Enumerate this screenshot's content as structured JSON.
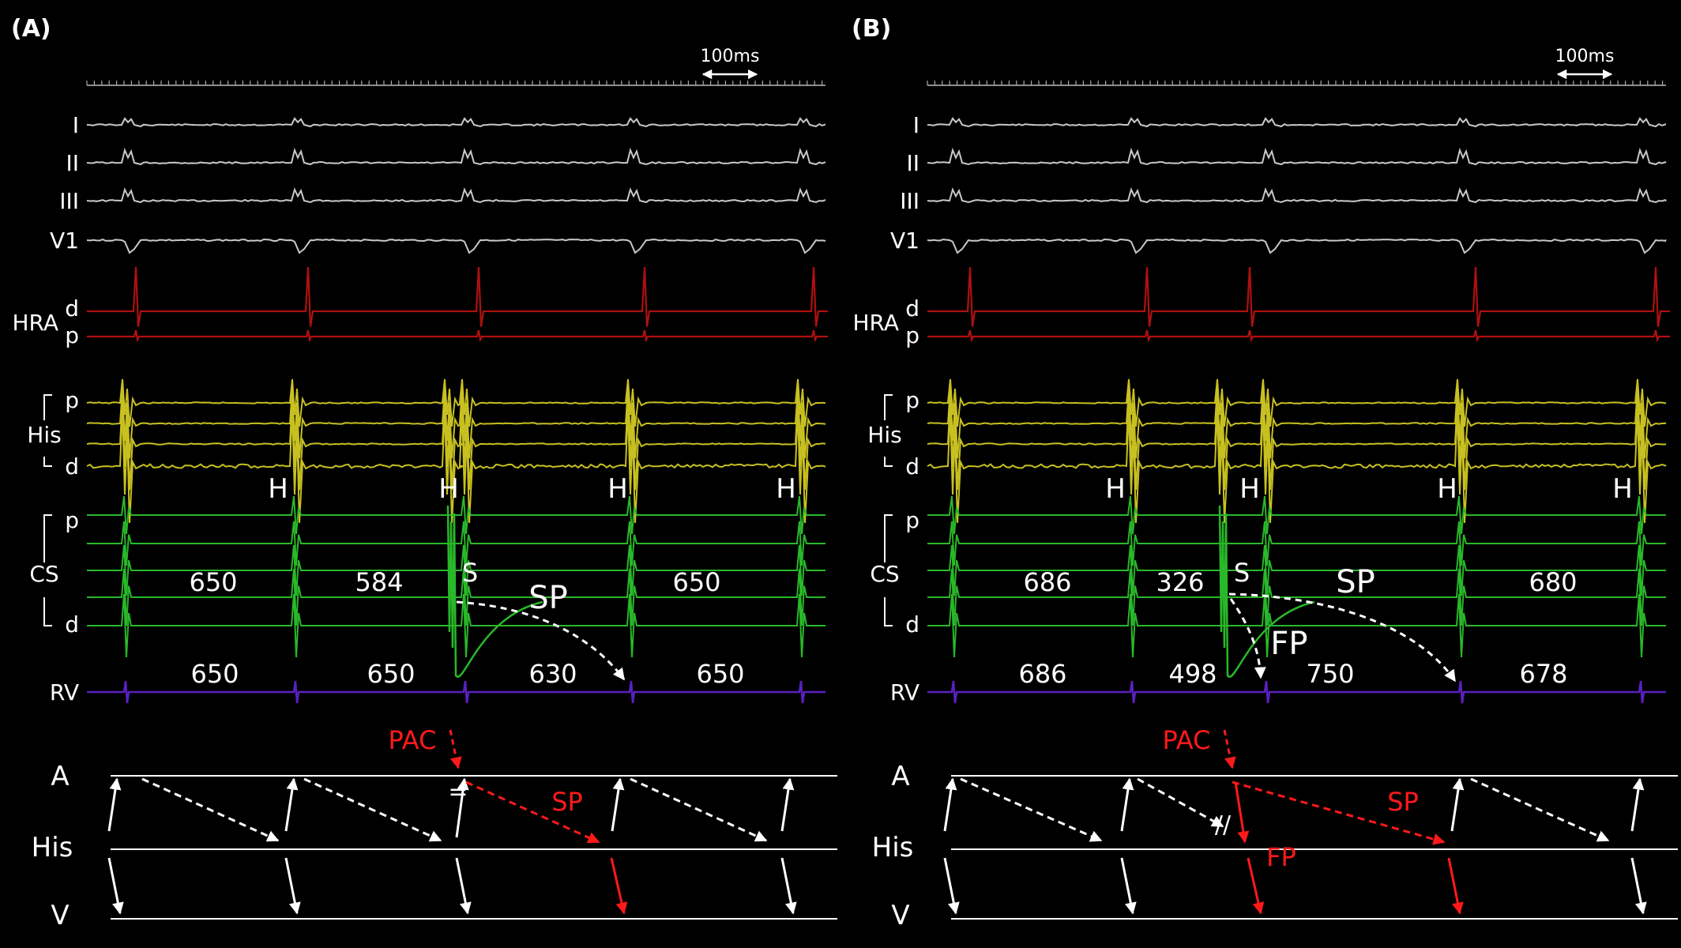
{
  "panels": [
    {
      "label": "(A)",
      "scale": "100ms",
      "channels": {
        "I": "I",
        "II": "II",
        "III": "III",
        "V1": "V1",
        "HRA": "HRA",
        "His": "His",
        "CS": "CS",
        "RV": "RV",
        "d": "d",
        "p": "p"
      },
      "h_labels": [
        "H",
        "H",
        "H",
        "H"
      ],
      "stim": "S",
      "cs_intervals": [
        "650",
        "584",
        "650"
      ],
      "rv_intervals": [
        "650",
        "650",
        "630",
        "650"
      ],
      "path_label": "SP",
      "ladder": {
        "A": "A",
        "His": "His",
        "V": "V",
        "PAC": "PAC",
        "SP": "SP",
        "block": "="
      }
    },
    {
      "label": "(B)",
      "scale": "100ms",
      "channels": {
        "I": "I",
        "II": "II",
        "III": "III",
        "V1": "V1",
        "HRA": "HRA",
        "His": "His",
        "CS": "CS",
        "RV": "RV",
        "d": "d",
        "p": "p"
      },
      "h_labels": [
        "H",
        "H",
        "H",
        "H"
      ],
      "stim": "S",
      "cs_intervals": [
        "686",
        "326",
        "680"
      ],
      "rv_intervals": [
        "686",
        "498",
        "750",
        "678"
      ],
      "path_labels": [
        "SP",
        "FP"
      ],
      "ladder": {
        "A": "A",
        "His": "His",
        "V": "V",
        "PAC": "PAC",
        "SP": "SP",
        "FP": "FP",
        "block": "//"
      }
    }
  ],
  "colors": {
    "background": "#000000",
    "ecg": "#c8c8c8",
    "hra": "#b01010",
    "his": "#c8c020",
    "cs": "#29b829",
    "rv": "#5a20c0",
    "text": "#ffffff",
    "red": "#ff1a1a"
  }
}
